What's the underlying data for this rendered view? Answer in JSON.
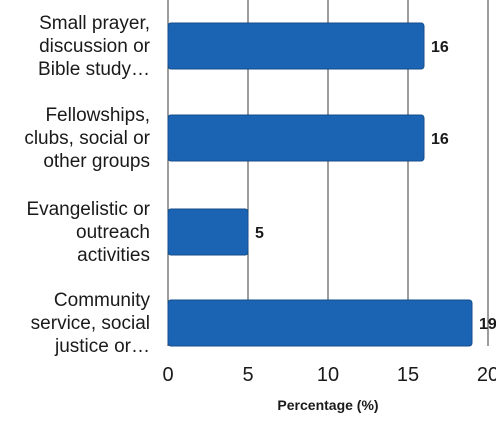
{
  "chart_data": {
    "type": "bar",
    "orientation": "horizontal",
    "categories": [
      [
        "Small prayer,",
        "discussion or",
        "Bible study…"
      ],
      [
        "Fellowships,",
        "clubs, social or",
        "other groups"
      ],
      [
        "Evangelistic or",
        "outreach",
        "activities"
      ],
      [
        "Community",
        "service, social",
        "justice or…"
      ]
    ],
    "values": [
      16,
      16,
      5,
      19
    ],
    "data_labels": [
      "16",
      "16",
      "5",
      "19"
    ],
    "xlabel": "Percentage (%)",
    "xlim": [
      0,
      20
    ],
    "xticks": [
      "0",
      "5",
      "10",
      "15",
      "20"
    ],
    "grid": true,
    "colors": {
      "bar": "#1b63b3",
      "bar_stroke": "#144d8c",
      "grid": "#3a3a3a"
    }
  }
}
